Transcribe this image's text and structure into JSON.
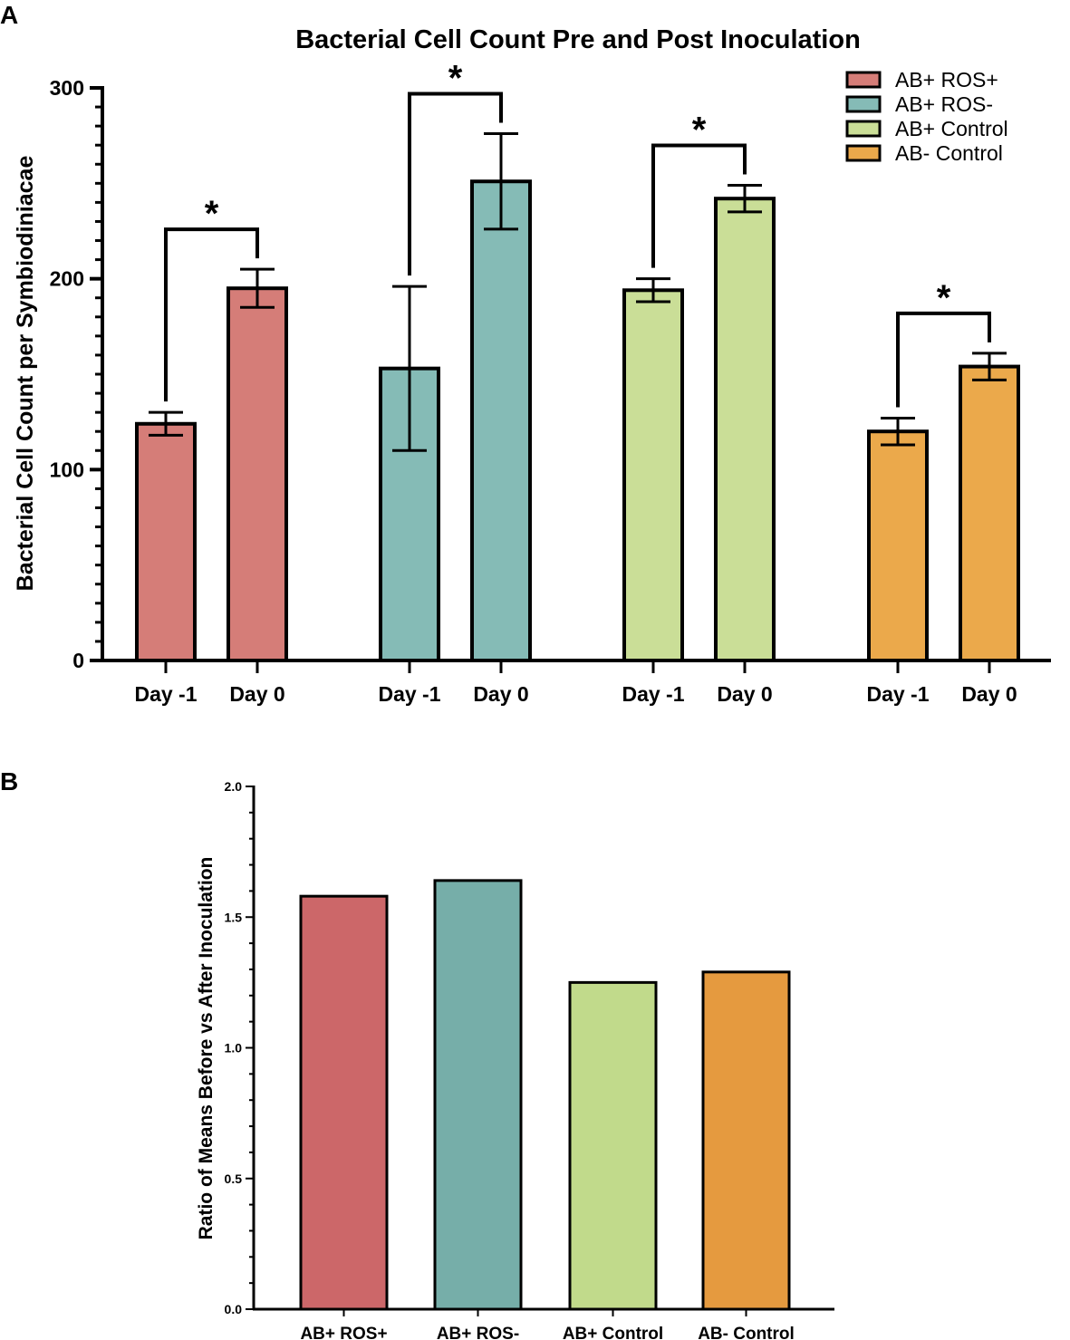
{
  "panel_a_label": "A",
  "panel_b_label": "B",
  "chart_data": [
    {
      "type": "bar",
      "title": "Bacterial Cell Count Pre and Post Inoculation",
      "xlabel": "",
      "ylabel": "Bacterial Cell Count per Symbiodiniacae",
      "ylim": [
        0,
        300
      ],
      "yticks": [
        0,
        100,
        200,
        300
      ],
      "legend_position": "top-right",
      "groups": [
        {
          "name": "AB+ ROS+",
          "color": "#d57d78",
          "bars": [
            {
              "label": "Day -1",
              "value": 124,
              "err": 6
            },
            {
              "label": "Day 0",
              "value": 195,
              "err": 10
            }
          ],
          "significance": "*"
        },
        {
          "name": "AB+ ROS-",
          "color": "#85bbb6",
          "bars": [
            {
              "label": "Day -1",
              "value": 153,
              "err": 43
            },
            {
              "label": "Day 0",
              "value": 251,
              "err": 25
            }
          ],
          "significance": "*"
        },
        {
          "name": "AB+ Control",
          "color": "#cade97",
          "bars": [
            {
              "label": "Day -1",
              "value": 194,
              "err": 6
            },
            {
              "label": "Day 0",
              "value": 242,
              "err": 7
            }
          ],
          "significance": "*"
        },
        {
          "name": "AB- Control",
          "color": "#eba94b",
          "bars": [
            {
              "label": "Day -1",
              "value": 120,
              "err": 7
            },
            {
              "label": "Day 0",
              "value": 154,
              "err": 7
            }
          ],
          "significance": "*"
        }
      ]
    },
    {
      "type": "bar",
      "title": "",
      "xlabel": "",
      "ylabel": "Ratio of Means Before vs After Inoculation",
      "ylim": [
        0,
        2.0
      ],
      "yticks": [
        "0.0",
        "0.5",
        "1.0",
        "1.5",
        "2.0"
      ],
      "categories": [
        "AB+ ROS+",
        "AB+ ROS-",
        "AB+ Control",
        "AB- Control"
      ],
      "values": [
        1.58,
        1.64,
        1.25,
        1.29
      ],
      "colors": [
        "#cc6769",
        "#76aea9",
        "#c1da8b",
        "#e59a3f"
      ]
    }
  ]
}
